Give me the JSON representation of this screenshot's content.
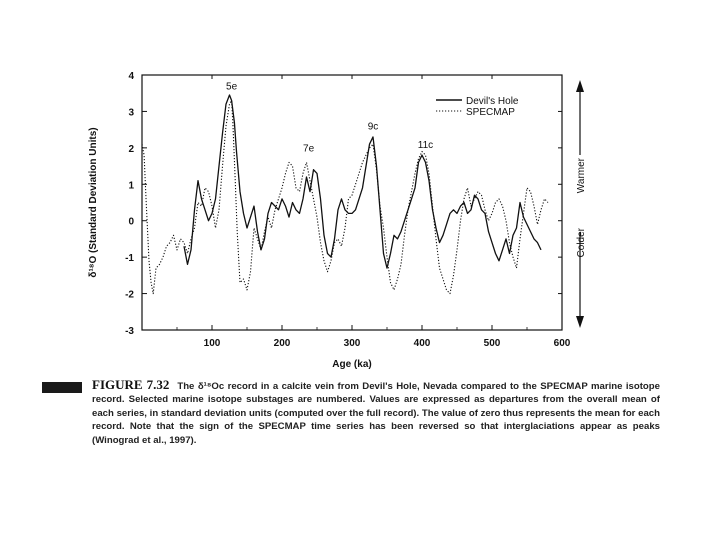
{
  "chart_data": {
    "type": "line",
    "xlabel": "Age (ka)",
    "ylabel": "δ¹⁸O (Standard Deviation Units)",
    "xlim": [
      0,
      600
    ],
    "ylim": [
      -3,
      4
    ],
    "x_ticks": [
      0,
      100,
      200,
      300,
      400,
      500,
      600
    ],
    "x_tick_labels": [
      "",
      "100",
      "200",
      "300",
      "400",
      "500",
      "600"
    ],
    "y_ticks": [
      -3,
      -2,
      -1,
      0,
      1,
      2,
      3,
      4
    ],
    "y_tick_labels": [
      "-3",
      "-2",
      "-1",
      "0",
      "1",
      "2",
      "3",
      "4"
    ],
    "legend": [
      "Devil's Hole",
      "SPECMAP"
    ],
    "annotations": [
      {
        "label": "5e",
        "x": 128,
        "y": 3.6
      },
      {
        "label": "7e",
        "x": 238,
        "y": 1.9
      },
      {
        "label": "9c",
        "x": 330,
        "y": 2.5
      },
      {
        "label": "11c",
        "x": 405,
        "y": 2.0
      }
    ],
    "side_labels": {
      "warmer": "Warmer",
      "colder": "Colder"
    },
    "series": [
      {
        "name": "Devil's Hole",
        "style": "solid",
        "x": [
          60,
          65,
          70,
          75,
          80,
          85,
          90,
          95,
          100,
          105,
          110,
          115,
          120,
          125,
          128,
          132,
          135,
          140,
          145,
          150,
          155,
          160,
          165,
          170,
          175,
          180,
          185,
          190,
          195,
          200,
          205,
          210,
          215,
          220,
          225,
          230,
          235,
          240,
          245,
          250,
          255,
          260,
          265,
          270,
          275,
          280,
          285,
          290,
          295,
          300,
          305,
          310,
          315,
          320,
          325,
          330,
          335,
          340,
          345,
          350,
          355,
          360,
          365,
          370,
          375,
          380,
          385,
          390,
          395,
          400,
          405,
          410,
          415,
          420,
          425,
          430,
          435,
          440,
          445,
          450,
          455,
          460,
          465,
          470,
          475,
          480,
          485,
          490,
          495,
          500,
          505,
          510,
          515,
          520,
          525,
          530,
          535,
          540,
          545,
          550,
          555,
          560,
          565,
          570
        ],
        "y": [
          -0.7,
          -1.2,
          -0.8,
          0.3,
          1.1,
          0.6,
          0.3,
          0.0,
          0.2,
          0.6,
          1.5,
          2.4,
          3.2,
          3.45,
          3.3,
          2.7,
          1.9,
          0.8,
          0.2,
          -0.2,
          0.1,
          0.4,
          -0.3,
          -0.8,
          -0.5,
          0.2,
          0.5,
          0.4,
          0.3,
          0.6,
          0.4,
          0.1,
          0.5,
          0.3,
          0.2,
          0.6,
          1.2,
          0.8,
          1.4,
          1.3,
          0.6,
          -0.4,
          -0.9,
          -1.0,
          -0.5,
          0.3,
          0.6,
          0.3,
          0.2,
          0.2,
          0.3,
          0.6,
          0.9,
          1.5,
          2.1,
          2.3,
          1.5,
          0.3,
          -0.9,
          -1.3,
          -0.9,
          -0.4,
          -0.5,
          -0.3,
          0.0,
          0.3,
          0.6,
          0.9,
          1.6,
          1.8,
          1.6,
          1.1,
          0.3,
          -0.2,
          -0.6,
          -0.4,
          -0.1,
          0.2,
          0.3,
          0.2,
          0.4,
          0.5,
          0.2,
          0.3,
          0.7,
          0.6,
          0.3,
          0.2,
          -0.3,
          -0.6,
          -0.9,
          -1.1,
          -0.8,
          -0.5,
          -0.9,
          -0.4,
          -0.2,
          0.5,
          0.1,
          -0.1,
          -0.3,
          -0.5,
          -0.6,
          -0.8
        ]
      },
      {
        "name": "SPECMAP",
        "style": "dotted",
        "x": [
          0,
          3,
          6,
          10,
          13,
          16,
          20,
          25,
          30,
          35,
          40,
          45,
          50,
          55,
          60,
          65,
          70,
          75,
          80,
          85,
          90,
          95,
          100,
          105,
          110,
          115,
          120,
          125,
          128,
          130,
          133,
          136,
          140,
          145,
          150,
          155,
          160,
          165,
          170,
          175,
          180,
          185,
          190,
          195,
          200,
          205,
          210,
          215,
          220,
          225,
          230,
          235,
          240,
          245,
          250,
          255,
          260,
          265,
          270,
          275,
          280,
          285,
          290,
          295,
          300,
          305,
          310,
          315,
          320,
          325,
          330,
          335,
          340,
          345,
          350,
          355,
          360,
          365,
          370,
          375,
          380,
          385,
          390,
          395,
          400,
          405,
          410,
          415,
          420,
          425,
          430,
          435,
          440,
          445,
          450,
          455,
          460,
          465,
          470,
          475,
          480,
          485,
          490,
          495,
          500,
          505,
          510,
          515,
          520,
          525,
          530,
          535,
          540,
          545,
          550,
          555,
          560,
          565,
          570,
          575,
          580
        ],
        "y": [
          2.1,
          1.8,
          0.5,
          -1.1,
          -1.7,
          -2.0,
          -1.3,
          -1.2,
          -1.0,
          -0.7,
          -0.6,
          -0.4,
          -0.8,
          -0.5,
          -0.6,
          -0.9,
          -0.5,
          -0.2,
          0.5,
          0.4,
          0.9,
          0.8,
          0.4,
          -0.2,
          0.3,
          1.5,
          2.6,
          3.2,
          3.3,
          2.6,
          1.2,
          -0.3,
          -1.7,
          -1.6,
          -1.9,
          -1.4,
          -0.2,
          -0.5,
          -0.8,
          -0.3,
          0.1,
          -0.2,
          0.3,
          0.6,
          0.9,
          1.3,
          1.6,
          1.5,
          0.9,
          0.8,
          1.3,
          1.6,
          1.1,
          0.6,
          0.1,
          -0.6,
          -1.1,
          -1.4,
          -1.1,
          -0.6,
          -0.5,
          -0.7,
          -0.2,
          0.6,
          0.7,
          1.0,
          1.3,
          1.6,
          1.8,
          2.0,
          2.1,
          1.4,
          0.4,
          -0.2,
          -1.0,
          -1.7,
          -1.9,
          -1.6,
          -1.2,
          -0.4,
          0.3,
          0.8,
          1.3,
          1.7,
          1.9,
          1.8,
          1.3,
          0.4,
          -0.5,
          -1.3,
          -1.6,
          -1.9,
          -2.0,
          -1.5,
          -0.8,
          0.0,
          0.6,
          0.9,
          0.4,
          0.6,
          0.8,
          0.7,
          0.3,
          0.0,
          0.2,
          0.5,
          0.6,
          0.4,
          0.0,
          -0.6,
          -1.0,
          -1.3,
          -0.5,
          0.2,
          0.9,
          0.8,
          0.4,
          -0.1,
          0.3,
          0.6,
          0.5
        ]
      }
    ]
  },
  "caption": {
    "label": "FIGURE 7.32",
    "text": "The δ¹⁸Oᴄ record in a calcite vein from Devil's Hole, Nevada compared to the SPECMAP marine isotope record. Selected marine isotope substages are numbered. Values are expressed as departures from the overall mean of each series, in standard deviation units (computed over the full record). The value of zero thus represents the mean for each record. Note that the sign of the SPECMAP time series has been reversed so that interglaciations appear as peaks (Winograd et al., 1997)."
  }
}
